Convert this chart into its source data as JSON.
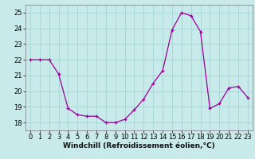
{
  "hours": [
    0,
    1,
    2,
    3,
    4,
    5,
    6,
    7,
    8,
    9,
    10,
    11,
    12,
    13,
    14,
    15,
    16,
    17,
    18,
    19,
    20,
    21,
    22,
    23
  ],
  "values": [
    22.0,
    22.0,
    22.0,
    21.1,
    18.9,
    18.5,
    18.4,
    18.4,
    18.0,
    18.0,
    18.2,
    18.8,
    19.5,
    20.5,
    21.3,
    23.9,
    25.0,
    24.8,
    23.8,
    18.9,
    19.2,
    20.2,
    20.3,
    19.6
  ],
  "line_color": "#990099",
  "marker_color": "#990099",
  "bg_color": "#c8eaea",
  "grid_color": "#a8d8d8",
  "xlabel": "Windchill (Refroidissement éolien,°C)",
  "ylim": [
    17.5,
    25.5
  ],
  "xlim": [
    -0.5,
    23.5
  ],
  "yticks": [
    18,
    19,
    20,
    21,
    22,
    23,
    24,
    25
  ],
  "xticks": [
    0,
    1,
    2,
    3,
    4,
    5,
    6,
    7,
    8,
    9,
    10,
    11,
    12,
    13,
    14,
    15,
    16,
    17,
    18,
    19,
    20,
    21,
    22,
    23
  ],
  "xlabel_fontsize": 6.5,
  "tick_fontsize": 6.0,
  "fig_width": 3.2,
  "fig_height": 2.0,
  "dpi": 100
}
